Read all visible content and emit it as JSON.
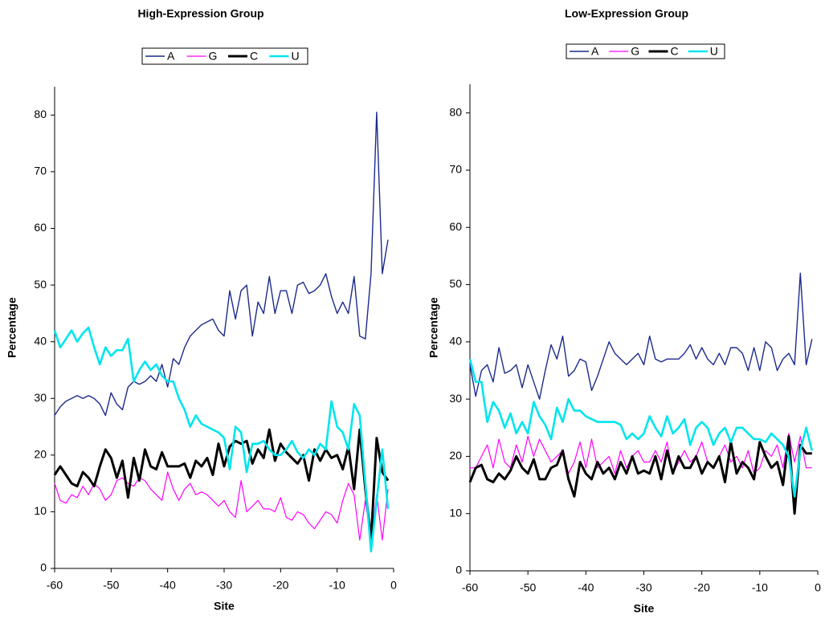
{
  "chart_data": [
    {
      "type": "line",
      "title": "High-Expression Group",
      "x_label": "Site",
      "y_label": "Percentage",
      "x": [
        -60,
        -59,
        -58,
        -57,
        -56,
        -55,
        -54,
        -53,
        -52,
        -51,
        -50,
        -49,
        -48,
        -47,
        -46,
        -45,
        -44,
        -43,
        -42,
        -41,
        -40,
        -39,
        -38,
        -37,
        -36,
        -35,
        -34,
        -33,
        -32,
        -31,
        -30,
        -29,
        -28,
        -27,
        -26,
        -25,
        -24,
        -23,
        -22,
        -21,
        -20,
        -19,
        -18,
        -17,
        -16,
        -15,
        -14,
        -13,
        -12,
        -11,
        -10,
        -9,
        -8,
        -7,
        -6,
        -5,
        -4,
        -3,
        -2,
        -1
      ],
      "xlim": [
        -60,
        0
      ],
      "xticks": [
        -60,
        -50,
        -40,
        -30,
        -20,
        -10,
        0
      ],
      "ylim": [
        0,
        85
      ],
      "yticks": [
        0,
        10,
        20,
        30,
        40,
        50,
        60,
        70,
        80
      ],
      "legend": "top",
      "series": [
        {
          "name": "A",
          "color": "#1c2a8c",
          "values": [
            27,
            28.5,
            29.5,
            30,
            30.5,
            30,
            30.5,
            30,
            29,
            27,
            31,
            29,
            28,
            32,
            33,
            32.5,
            33,
            34,
            33,
            36,
            32,
            37,
            36,
            39,
            41,
            42,
            43,
            43.5,
            44,
            42,
            41,
            49,
            44,
            49,
            50,
            41,
            47,
            45,
            51.5,
            45,
            49,
            49,
            45,
            50,
            50.5,
            48.5,
            49,
            50,
            52,
            48,
            45,
            47,
            45,
            51.5,
            41,
            40.5,
            52,
            80.5,
            52,
            58
          ]
        },
        {
          "name": "G",
          "color": "#ff00ff",
          "values": [
            15,
            12,
            11.5,
            13,
            12.5,
            14.5,
            13,
            15,
            14,
            12,
            13,
            15.5,
            16,
            15,
            14.5,
            16,
            15.5,
            14,
            13,
            12,
            17,
            14,
            12,
            14,
            15,
            13,
            13.5,
            13,
            12,
            11,
            12,
            10,
            9,
            15.5,
            10,
            11,
            12,
            10.5,
            10.5,
            10,
            12.5,
            9,
            8.5,
            10,
            9.5,
            8,
            7,
            8.5,
            10,
            9.5,
            8,
            12,
            15,
            13,
            5,
            12,
            5,
            13,
            5,
            14
          ]
        },
        {
          "name": "C",
          "color": "#000000",
          "values": [
            16.5,
            18,
            16.5,
            15,
            14.5,
            17,
            16,
            14.5,
            18,
            21,
            19.5,
            16,
            19,
            12.5,
            19.5,
            15.5,
            21,
            18,
            17.5,
            20.5,
            18,
            18,
            18,
            18.5,
            16,
            19,
            18,
            19.5,
            16.5,
            22,
            18,
            21.5,
            22.5,
            22,
            22.5,
            18.5,
            21,
            19.5,
            24.5,
            19,
            22,
            20.5,
            19.5,
            18.5,
            20,
            15.5,
            21,
            19,
            21,
            19.5,
            20,
            17.5,
            21.5,
            14,
            24.5,
            14,
            5,
            23,
            17,
            15.5
          ]
        },
        {
          "name": "U",
          "color": "#00e5ee",
          "values": [
            42,
            39,
            40.5,
            42,
            40,
            41.5,
            42.5,
            39,
            36,
            39,
            37.5,
            38.5,
            38.5,
            40.5,
            33,
            35,
            36.5,
            35,
            36,
            34,
            33,
            33,
            30,
            28,
            25,
            27,
            25.5,
            25,
            24.5,
            24,
            23,
            17.5,
            25,
            24,
            17,
            22,
            22,
            22.5,
            21,
            20,
            20,
            21,
            22.5,
            20.5,
            19.5,
            21,
            20,
            22,
            21,
            29.5,
            25,
            24,
            21,
            29,
            27,
            15,
            3,
            12,
            21,
            10.5
          ]
        }
      ]
    },
    {
      "type": "line",
      "title": "Low-Expression Group",
      "x_label": "Site",
      "y_label": "Percentage",
      "x": [
        -60,
        -59,
        -58,
        -57,
        -56,
        -55,
        -54,
        -53,
        -52,
        -51,
        -50,
        -49,
        -48,
        -47,
        -46,
        -45,
        -44,
        -43,
        -42,
        -41,
        -40,
        -39,
        -38,
        -37,
        -36,
        -35,
        -34,
        -33,
        -32,
        -31,
        -30,
        -29,
        -28,
        -27,
        -26,
        -25,
        -24,
        -23,
        -22,
        -21,
        -20,
        -19,
        -18,
        -17,
        -16,
        -15,
        -14,
        -13,
        -12,
        -11,
        -10,
        -9,
        -8,
        -7,
        -6,
        -5,
        -4,
        -3,
        -2,
        -1
      ],
      "xlim": [
        -60,
        0
      ],
      "xticks": [
        -60,
        -50,
        -40,
        -30,
        -20,
        -10,
        0
      ],
      "ylim": [
        0,
        85
      ],
      "yticks": [
        0,
        10,
        20,
        30,
        40,
        50,
        60,
        70,
        80
      ],
      "legend": "top",
      "series": [
        {
          "name": "A",
          "color": "#1c2a8c",
          "values": [
            36,
            30.5,
            35,
            36,
            33,
            39,
            34.5,
            35,
            36,
            32,
            36,
            33,
            30,
            35,
            39.5,
            37,
            41,
            34,
            35,
            37,
            36.5,
            31.5,
            34,
            37,
            40,
            38,
            37,
            36,
            37,
            38,
            36,
            41,
            37,
            36.5,
            37,
            37,
            37,
            38,
            39.5,
            37,
            39,
            37,
            36,
            38,
            36,
            39,
            39,
            38,
            35,
            39,
            35,
            40,
            39,
            35,
            37,
            38,
            36,
            52,
            36,
            40.5
          ]
        },
        {
          "name": "G",
          "color": "#ff00ff",
          "values": [
            18,
            18,
            20,
            22,
            18,
            23,
            19,
            18,
            22,
            19,
            23.5,
            20,
            23,
            21,
            19,
            20,
            21,
            17,
            19,
            22.5,
            18,
            23,
            18,
            19,
            20,
            17,
            21,
            18,
            20,
            21,
            19,
            19,
            21,
            19,
            22.5,
            17,
            19,
            21,
            19,
            20,
            22.5,
            19,
            18,
            20,
            22,
            19,
            20,
            18,
            21,
            17,
            18,
            21,
            20,
            22,
            18,
            24,
            19,
            23.5,
            18,
            18
          ]
        },
        {
          "name": "C",
          "color": "#000000",
          "values": [
            15.5,
            18,
            18.5,
            16,
            15.5,
            17,
            16,
            17.5,
            20,
            18,
            17,
            19.5,
            16,
            16,
            18,
            18.5,
            21,
            16,
            13,
            19,
            17,
            16,
            19,
            17,
            18,
            16,
            19,
            17,
            20,
            17,
            17.5,
            17,
            20,
            16,
            21,
            17,
            20,
            18,
            18,
            20,
            17,
            19,
            18,
            20,
            15.5,
            22.5,
            17,
            19,
            18,
            16,
            22.5,
            20,
            18,
            19,
            15,
            23.5,
            10,
            22,
            20.5,
            20.5
          ]
        },
        {
          "name": "U",
          "color": "#00e5ee",
          "values": [
            37,
            33,
            33,
            26,
            29.5,
            28,
            25,
            27.5,
            24,
            26,
            24,
            29.5,
            27,
            25.5,
            23,
            28.5,
            26,
            30,
            28,
            28,
            27,
            26.5,
            26,
            26,
            26,
            26,
            25.5,
            23,
            24,
            23,
            24,
            27,
            25,
            23.5,
            27,
            24,
            25,
            26.5,
            22,
            25,
            26,
            25,
            22,
            24,
            25,
            22.5,
            25,
            25,
            24,
            23,
            23,
            22.5,
            24,
            23,
            22,
            20,
            13,
            21,
            25,
            21
          ]
        }
      ]
    }
  ]
}
